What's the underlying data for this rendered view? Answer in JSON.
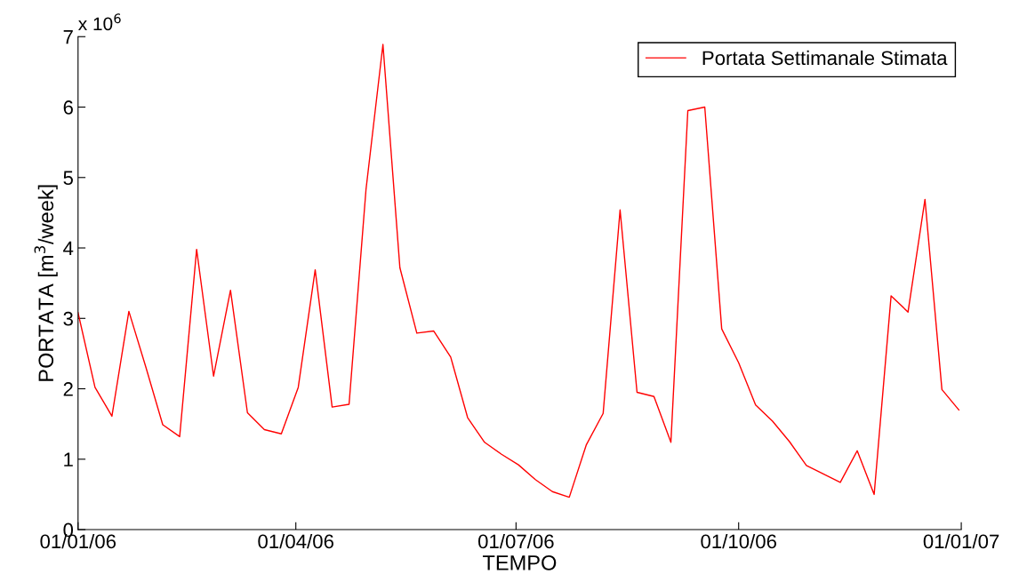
{
  "chart_data": {
    "type": "line",
    "xlabel": "TEMPO",
    "ylabel": "PORTATA [m$^{3}$/week]",
    "annotations": [
      "x 10$^{6}$"
    ],
    "x": [
      "2006-01-01",
      "2006-01-08",
      "2006-01-15",
      "2006-01-22",
      "2006-01-29",
      "2006-02-05",
      "2006-02-12",
      "2006-02-19",
      "2006-02-26",
      "2006-03-05",
      "2006-03-12",
      "2006-03-19",
      "2006-03-26",
      "2006-04-02",
      "2006-04-09",
      "2006-04-16",
      "2006-04-23",
      "2006-04-30",
      "2006-05-07",
      "2006-05-14",
      "2006-05-21",
      "2006-05-28",
      "2006-06-04",
      "2006-06-11",
      "2006-06-18",
      "2006-06-25",
      "2006-07-02",
      "2006-07-09",
      "2006-07-16",
      "2006-07-23",
      "2006-07-30",
      "2006-08-06",
      "2006-08-13",
      "2006-08-20",
      "2006-08-27",
      "2006-09-03",
      "2006-09-10",
      "2006-09-17",
      "2006-09-24",
      "2006-10-01",
      "2006-10-08",
      "2006-10-15",
      "2006-10-22",
      "2006-10-29",
      "2006-11-05",
      "2006-11-12",
      "2006-11-19",
      "2006-11-26",
      "2006-12-03",
      "2006-12-10",
      "2006-12-17",
      "2006-12-24",
      "2006-12-31"
    ],
    "series": [
      {
        "name": "Portata Settimanale Stimata",
        "color": "#ff0000",
        "values": [
          3.08,
          2.02,
          1.61,
          3.1,
          2.31,
          1.49,
          1.32,
          3.98,
          2.18,
          3.4,
          1.66,
          1.42,
          1.36,
          2.02,
          3.69,
          1.74,
          1.78,
          4.83,
          6.89,
          3.72,
          2.79,
          2.82,
          2.45,
          1.59,
          1.24,
          1.07,
          0.92,
          0.71,
          0.54,
          0.46,
          1.2,
          1.65,
          4.54,
          1.95,
          1.89,
          1.24,
          5.95,
          6.0,
          2.85,
          2.37,
          1.77,
          1.54,
          1.25,
          0.91,
          0.79,
          0.67,
          1.12,
          0.5,
          3.32,
          3.09,
          4.69,
          1.99,
          1.7
        ]
      }
    ],
    "xlim": [
      "2006-01-01",
      "2007-01-01"
    ],
    "xticks": [
      {
        "value": "2006-01-01",
        "label": "01/01/06"
      },
      {
        "value": "2006-04-01",
        "label": "01/04/06"
      },
      {
        "value": "2006-07-01",
        "label": "01/07/06"
      },
      {
        "value": "2006-10-01",
        "label": "01/10/06"
      },
      {
        "value": "2007-01-01",
        "label": "01/01/07"
      }
    ],
    "ylim": [
      0,
      7
    ],
    "yticks": [
      0,
      1,
      2,
      3,
      4,
      5,
      6,
      7
    ],
    "legend": "top right",
    "grid": false,
    "marker": "none",
    "line_style": "solid"
  }
}
